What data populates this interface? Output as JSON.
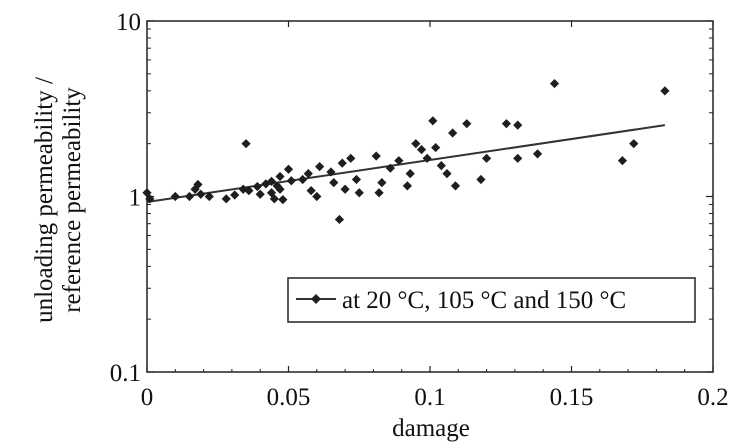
{
  "chart_data": {
    "type": "scatter",
    "title": "",
    "xlabel": "damage",
    "ylabel_lines": [
      "unloading permeability /",
      "reference permeability"
    ],
    "xlim": [
      0,
      0.2
    ],
    "ylim": [
      0.1,
      10
    ],
    "yscale": "log",
    "grid": false,
    "legend_position": "bottom-right",
    "x_ticks": [
      0,
      0.05,
      0.1,
      0.15,
      0.2
    ],
    "x_tick_labels": [
      "0",
      "0.05",
      "0.1",
      "0.15",
      "0.2"
    ],
    "y_ticks": [
      0.1,
      1,
      10
    ],
    "y_tick_labels": [
      "0.1",
      "1",
      "10"
    ],
    "series": [
      {
        "name": "at 20 °C, 105 °C and 150 °C",
        "color": "#333333",
        "marker": "diamond",
        "points": [
          [
            0.0,
            1.05
          ],
          [
            0.001,
            0.97
          ],
          [
            0.01,
            1.0
          ],
          [
            0.015,
            1.0
          ],
          [
            0.017,
            1.1
          ],
          [
            0.018,
            1.17
          ],
          [
            0.019,
            1.03
          ],
          [
            0.022,
            1.0
          ],
          [
            0.028,
            0.97
          ],
          [
            0.031,
            1.02
          ],
          [
            0.034,
            1.1
          ],
          [
            0.035,
            2.0
          ],
          [
            0.036,
            1.08
          ],
          [
            0.039,
            1.14
          ],
          [
            0.04,
            1.03
          ],
          [
            0.042,
            1.18
          ],
          [
            0.044,
            1.05
          ],
          [
            0.044,
            1.22
          ],
          [
            0.045,
            0.97
          ],
          [
            0.046,
            1.15
          ],
          [
            0.047,
            1.3
          ],
          [
            0.047,
            1.1
          ],
          [
            0.048,
            0.96
          ],
          [
            0.05,
            1.43
          ],
          [
            0.051,
            1.23
          ],
          [
            0.055,
            1.25
          ],
          [
            0.057,
            1.35
          ],
          [
            0.058,
            1.08
          ],
          [
            0.06,
            1.0
          ],
          [
            0.061,
            1.48
          ],
          [
            0.065,
            1.38
          ],
          [
            0.066,
            1.2
          ],
          [
            0.068,
            0.74
          ],
          [
            0.069,
            1.55
          ],
          [
            0.07,
            1.1
          ],
          [
            0.072,
            1.65
          ],
          [
            0.074,
            1.25
          ],
          [
            0.075,
            1.05
          ],
          [
            0.081,
            1.7
          ],
          [
            0.082,
            1.05
          ],
          [
            0.083,
            1.2
          ],
          [
            0.086,
            1.45
          ],
          [
            0.089,
            1.6
          ],
          [
            0.092,
            1.15
          ],
          [
            0.093,
            1.35
          ],
          [
            0.095,
            2.0
          ],
          [
            0.097,
            1.85
          ],
          [
            0.099,
            1.65
          ],
          [
            0.101,
            2.7
          ],
          [
            0.102,
            1.9
          ],
          [
            0.104,
            1.5
          ],
          [
            0.106,
            1.35
          ],
          [
            0.108,
            2.3
          ],
          [
            0.109,
            1.15
          ],
          [
            0.113,
            2.6
          ],
          [
            0.118,
            1.25
          ],
          [
            0.12,
            1.65
          ],
          [
            0.127,
            2.6
          ],
          [
            0.131,
            2.55
          ],
          [
            0.131,
            1.65
          ],
          [
            0.138,
            1.75
          ],
          [
            0.144,
            4.4
          ],
          [
            0.168,
            1.6
          ],
          [
            0.172,
            2.0
          ],
          [
            0.183,
            4.0
          ]
        ],
        "trendline": {
          "x": [
            0,
            0.183
          ],
          "y": [
            0.93,
            2.55
          ]
        }
      }
    ]
  }
}
